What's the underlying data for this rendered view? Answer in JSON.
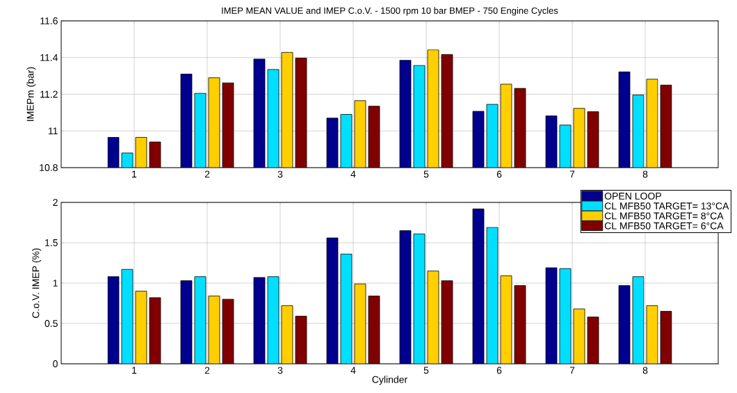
{
  "chart_data": [
    {
      "type": "bar",
      "title": "IMEP MEAN VALUE and IMEP C.o.V. - 1500 rpm 10 bar BMEP - 750 Engine Cycles",
      "ylabel": "IMEPm (bar)",
      "categories": [
        "1",
        "2",
        "3",
        "4",
        "5",
        "6",
        "7",
        "8"
      ],
      "ylim": [
        10.8,
        11.6
      ],
      "yticks": [
        10.8,
        11,
        11.2,
        11.4,
        11.6
      ],
      "grid": true,
      "series": [
        {
          "color": "#00008f",
          "values": [
            10.965,
            11.31,
            11.392,
            11.07,
            11.385,
            11.107,
            11.082,
            11.322
          ]
        },
        {
          "color": "#00dfff",
          "values": [
            10.88,
            11.205,
            11.335,
            11.09,
            11.357,
            11.145,
            11.032,
            11.196
          ]
        },
        {
          "color": "#ffcf00",
          "values": [
            10.965,
            11.29,
            11.428,
            11.165,
            11.442,
            11.255,
            11.123,
            11.282
          ]
        },
        {
          "color": "#800000",
          "values": [
            10.94,
            11.262,
            11.397,
            11.135,
            11.417,
            11.232,
            11.105,
            11.25
          ]
        }
      ]
    },
    {
      "type": "bar",
      "xlabel": "Cylinder",
      "ylabel": "C.o.V. IMEP (%)",
      "categories": [
        "1",
        "2",
        "3",
        "4",
        "5",
        "6",
        "7",
        "8"
      ],
      "ylim": [
        0,
        2
      ],
      "yticks": [
        0,
        0.5,
        1,
        1.5,
        2
      ],
      "grid": true,
      "legend": "top right",
      "series": [
        {
          "name": "OPEN LOOP",
          "color": "#00008f",
          "values": [
            1.08,
            1.03,
            1.07,
            1.56,
            1.65,
            1.92,
            1.19,
            0.97
          ]
        },
        {
          "name": "CL MFB50 TARGET= 13°CA",
          "color": "#00dfff",
          "values": [
            1.17,
            1.08,
            1.08,
            1.36,
            1.61,
            1.69,
            1.18,
            1.08
          ]
        },
        {
          "name": "CL MFB50 TARGET= 8°CA",
          "color": "#ffcf00",
          "values": [
            0.9,
            0.84,
            0.72,
            0.99,
            1.15,
            1.09,
            0.68,
            0.72
          ]
        },
        {
          "name": "CL MFB50 TARGET= 6°CA",
          "color": "#800000",
          "values": [
            0.82,
            0.8,
            0.59,
            0.84,
            1.03,
            0.97,
            0.58,
            0.65
          ]
        }
      ]
    }
  ]
}
